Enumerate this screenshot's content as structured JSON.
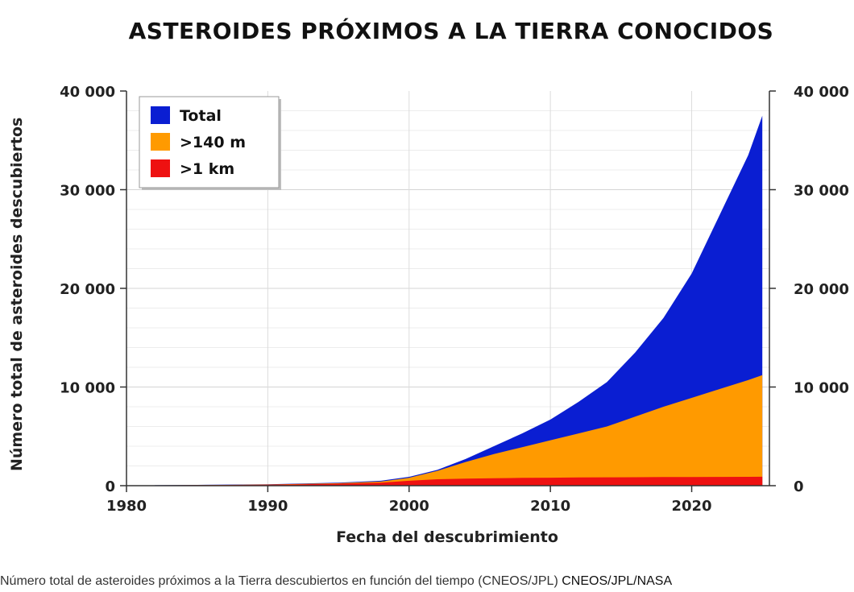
{
  "chart_data": {
    "type": "area",
    "title": "ASTEROIDES PRÓXIMOS A LA TIERRA CONOCIDOS",
    "xlabel": "Fecha del descubrimiento",
    "ylabel": "Número total de asteroides descubiertos",
    "xlim": [
      1980,
      2025.5
    ],
    "ylim": [
      0,
      40000
    ],
    "x_ticks": [
      "1980",
      "1990",
      "2000",
      "2010",
      "2020"
    ],
    "y_ticks": [
      "0",
      "10 000",
      "20 000",
      "30 000",
      "40 000"
    ],
    "y_ticks_right": [
      "0",
      "10 000",
      "20 000",
      "30 000",
      "40 000"
    ],
    "grid": true,
    "legend_position": "top-left",
    "x": [
      1982,
      1985,
      1990,
      1995,
      1998,
      2000,
      2002,
      2004,
      2006,
      2008,
      2010,
      2012,
      2014,
      2016,
      2018,
      2020,
      2022,
      2024,
      2025
    ],
    "series": [
      {
        "name": "Total",
        "color": "#0a1ed2",
        "values": [
          50,
          80,
          150,
          300,
          500,
          900,
          1600,
          2700,
          4000,
          5300,
          6700,
          8500,
          10500,
          13500,
          17000,
          21500,
          27500,
          33500,
          37500
        ]
      },
      {
        "name": ">140 m",
        "color": "#ff9a00",
        "values": [
          40,
          60,
          120,
          250,
          420,
          800,
          1500,
          2400,
          3200,
          3900,
          4600,
          5300,
          6000,
          7000,
          8000,
          8900,
          9800,
          10700,
          11200
        ]
      },
      {
        "name": ">1 km",
        "color": "#ee1111",
        "values": [
          30,
          50,
          100,
          200,
          300,
          500,
          650,
          720,
          760,
          790,
          810,
          830,
          850,
          860,
          870,
          880,
          890,
          900,
          910
        ]
      }
    ]
  },
  "caption": {
    "text": "Número total de asteroides próximos a la Tierra descubiertos en función del tiempo (CNEOS/JPL)",
    "credit": "CNEOS/JPL/NASA"
  }
}
